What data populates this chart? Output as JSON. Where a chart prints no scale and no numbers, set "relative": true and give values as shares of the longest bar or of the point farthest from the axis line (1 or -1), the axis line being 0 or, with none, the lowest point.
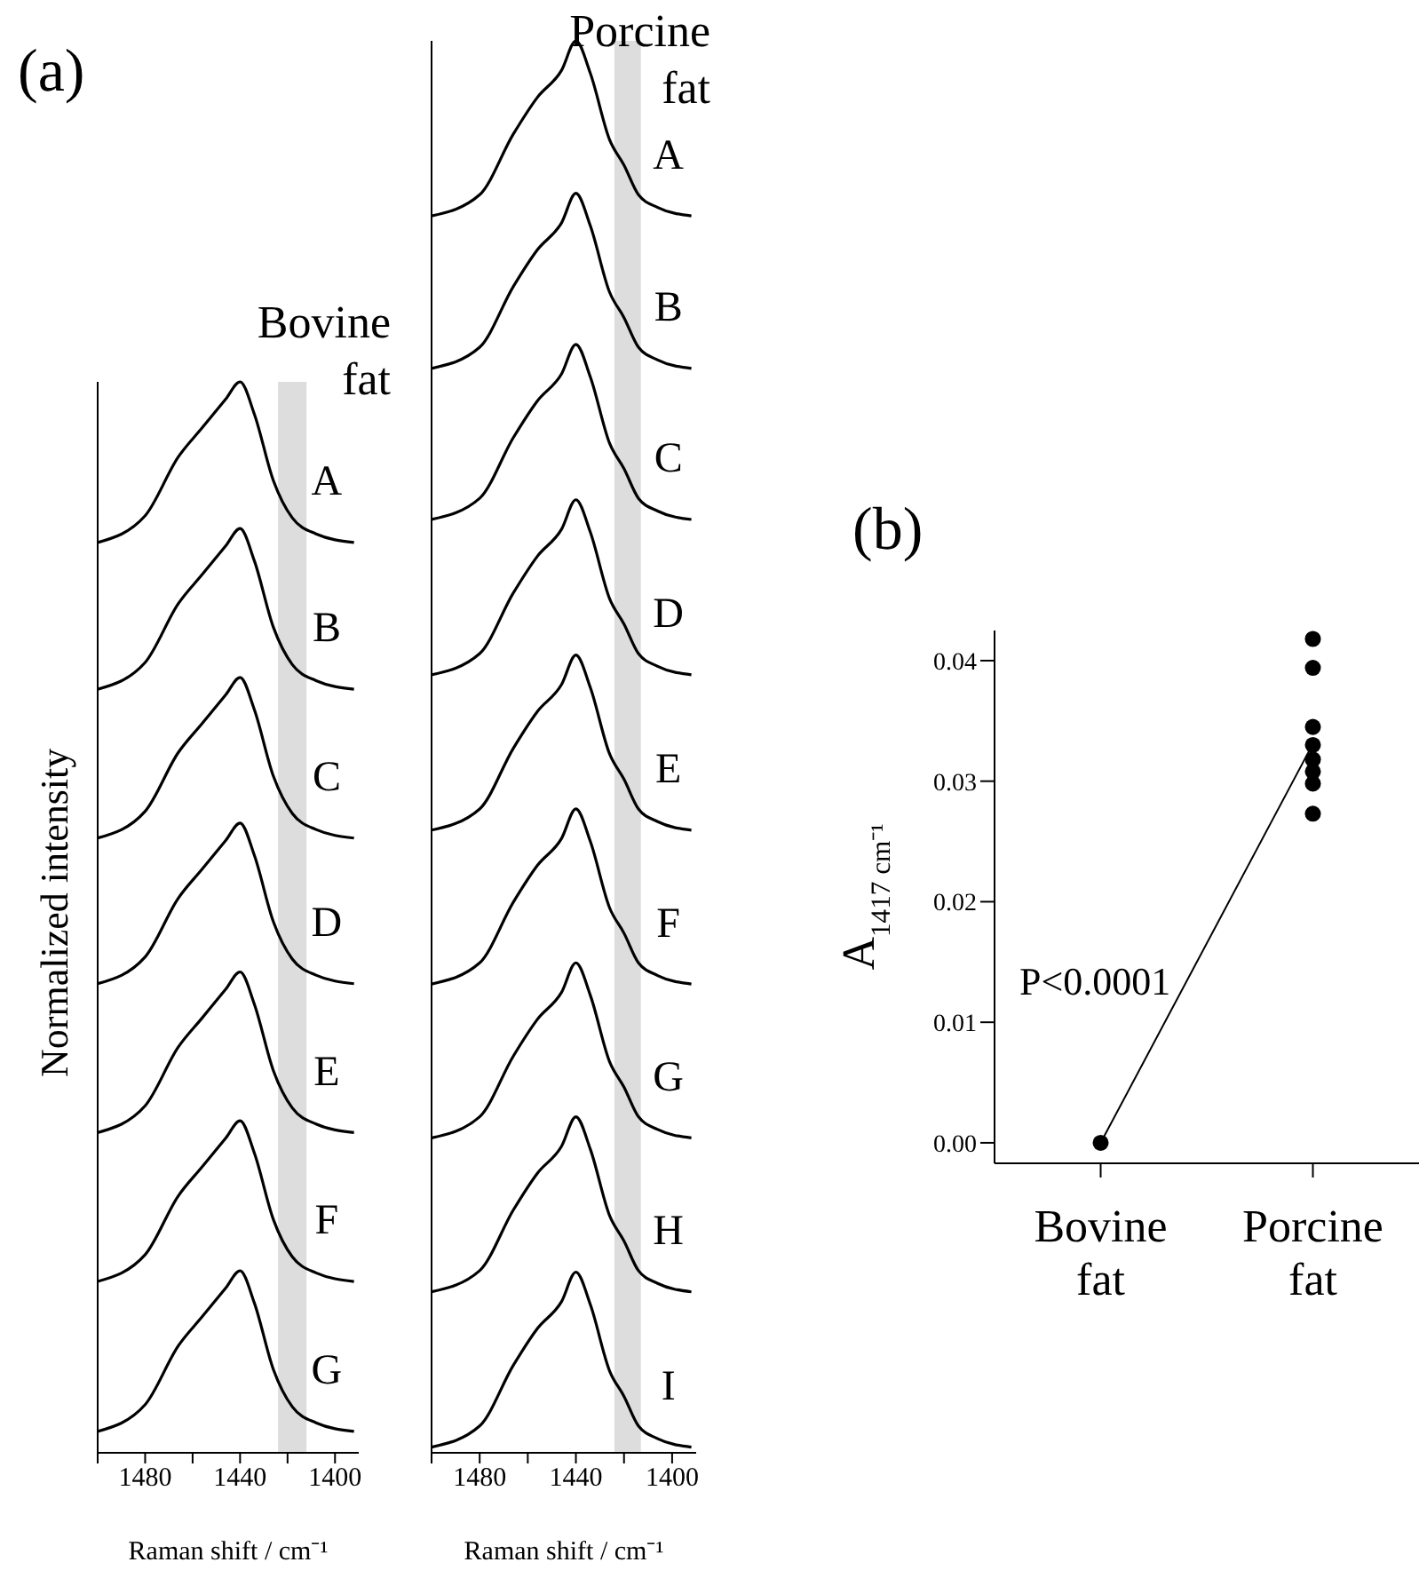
{
  "chart_data": [
    {
      "type": "line",
      "relative": true,
      "title": "Bovine fat",
      "ylabel": "Normalized intensity",
      "xlabel": "Raman shift / cm⁻¹",
      "annotations": [
        "(a)"
      ],
      "x": [
        1500,
        1480,
        1466,
        1456,
        1446,
        1440,
        1434,
        1426,
        1418,
        1408,
        1392
      ],
      "xlim": [
        1500,
        1390
      ],
      "xticks": [
        {
          "value": 1500,
          "label": null
        },
        1480,
        {
          "value": 1460,
          "label": null
        },
        1440,
        {
          "value": 1420,
          "label": null
        },
        1400
      ],
      "bands": [
        {
          "axis": "x",
          "from": 1424,
          "to": 1412,
          "color": "#dddddd"
        }
      ],
      "marker": "none",
      "line_style": "solid",
      "series": [
        {
          "name": "A",
          "color": "#000000",
          "values": [
            0.85,
            0.875,
            0.93,
            0.957,
            0.984,
            1.0,
            0.97,
            0.908,
            0.873,
            0.858,
            0.85
          ]
        },
        {
          "name": "B",
          "color": "#000000",
          "values": [
            0.713,
            0.738,
            0.793,
            0.82,
            0.847,
            0.863,
            0.833,
            0.771,
            0.736,
            0.721,
            0.713
          ]
        },
        {
          "name": "C",
          "color": "#000000",
          "values": [
            0.574,
            0.599,
            0.654,
            0.681,
            0.708,
            0.724,
            0.694,
            0.632,
            0.597,
            0.582,
            0.574
          ]
        },
        {
          "name": "D",
          "color": "#000000",
          "values": [
            0.438,
            0.463,
            0.518,
            0.545,
            0.572,
            0.588,
            0.558,
            0.496,
            0.461,
            0.446,
            0.438
          ]
        },
        {
          "name": "E",
          "color": "#000000",
          "values": [
            0.299,
            0.324,
            0.379,
            0.406,
            0.433,
            0.449,
            0.419,
            0.357,
            0.322,
            0.307,
            0.299
          ]
        },
        {
          "name": "F",
          "color": "#000000",
          "values": [
            0.16,
            0.185,
            0.24,
            0.267,
            0.294,
            0.31,
            0.28,
            0.218,
            0.183,
            0.168,
            0.16
          ]
        },
        {
          "name": "G",
          "color": "#000000",
          "values": [
            0.02,
            0.045,
            0.1,
            0.127,
            0.154,
            0.17,
            0.14,
            0.078,
            0.043,
            0.028,
            0.02
          ]
        }
      ]
    },
    {
      "type": "line",
      "relative": true,
      "title": "Porcine fat",
      "xlabel": "Raman shift / cm⁻¹",
      "x": [
        1500,
        1480,
        1466,
        1456,
        1446,
        1440,
        1434,
        1426,
        1420,
        1414,
        1406,
        1392
      ],
      "xlim": [
        1500,
        1390
      ],
      "xticks": [
        {
          "value": 1500,
          "label": null
        },
        1480,
        {
          "value": 1460,
          "label": null
        },
        1440,
        {
          "value": 1420,
          "label": null
        },
        1400
      ],
      "bands": [
        {
          "axis": "x",
          "from": 1424,
          "to": 1413,
          "color": "#dddddd"
        }
      ],
      "marker": "none",
      "line_style": "solid",
      "series": [
        {
          "name": "A",
          "color": "#000000",
          "values": [
            0.876,
            0.891,
            0.934,
            0.96,
            0.979,
            1.0,
            0.977,
            0.93,
            0.912,
            0.891,
            0.882,
            0.876
          ]
        },
        {
          "name": "B",
          "color": "#000000",
          "values": [
            0.768,
            0.783,
            0.826,
            0.852,
            0.871,
            0.892,
            0.869,
            0.822,
            0.804,
            0.783,
            0.774,
            0.768
          ]
        },
        {
          "name": "C",
          "color": "#000000",
          "values": [
            0.661,
            0.676,
            0.719,
            0.745,
            0.764,
            0.785,
            0.762,
            0.715,
            0.697,
            0.676,
            0.667,
            0.661
          ]
        },
        {
          "name": "D",
          "color": "#000000",
          "values": [
            0.551,
            0.566,
            0.609,
            0.635,
            0.654,
            0.675,
            0.652,
            0.605,
            0.587,
            0.566,
            0.557,
            0.551
          ]
        },
        {
          "name": "E",
          "color": "#000000",
          "values": [
            0.441,
            0.456,
            0.499,
            0.525,
            0.544,
            0.565,
            0.542,
            0.495,
            0.477,
            0.456,
            0.447,
            0.441
          ]
        },
        {
          "name": "F",
          "color": "#000000",
          "values": [
            0.332,
            0.347,
            0.39,
            0.416,
            0.435,
            0.456,
            0.433,
            0.386,
            0.368,
            0.347,
            0.338,
            0.332
          ]
        },
        {
          "name": "G",
          "color": "#000000",
          "values": [
            0.223,
            0.238,
            0.281,
            0.307,
            0.326,
            0.347,
            0.324,
            0.277,
            0.259,
            0.238,
            0.229,
            0.223
          ]
        },
        {
          "name": "H",
          "color": "#000000",
          "values": [
            0.114,
            0.129,
            0.172,
            0.198,
            0.217,
            0.238,
            0.215,
            0.168,
            0.15,
            0.129,
            0.12,
            0.114
          ]
        },
        {
          "name": "I",
          "color": "#000000",
          "values": [
            0.004,
            0.019,
            0.062,
            0.088,
            0.107,
            0.128,
            0.105,
            0.058,
            0.04,
            0.019,
            0.01,
            0.004
          ]
        }
      ]
    },
    {
      "type": "scatter",
      "ylabel": "A$_{1417 cm⁻¹}$",
      "annotations": [
        "(b)",
        "P<0.0001"
      ],
      "categories": [
        "Bovine fat",
        "Porcine fat"
      ],
      "ylim": [
        -0.0017,
        0.0425
      ],
      "yticks": [
        {
          "value": 0,
          "label": "0.00"
        },
        {
          "value": 0.01,
          "label": "0.01"
        },
        {
          "value": 0.02,
          "label": "0.02"
        },
        {
          "value": 0.03,
          "label": "0.03"
        },
        {
          "value": 0.04,
          "label": "0.04"
        }
      ],
      "series": [
        {
          "type": "line",
          "color": "#000000",
          "x": [
            "Bovine fat",
            "Porcine fat"
          ],
          "values": [
            0,
            0.0331
          ]
        },
        {
          "type": "scatter",
          "color": "#000000",
          "x": [
            "Bovine fat"
          ],
          "values": [
            0
          ]
        },
        {
          "type": "scatter",
          "color": "#000000",
          "x": [
            "Porcine fat",
            "Porcine fat",
            "Porcine fat",
            "Porcine fat",
            "Porcine fat",
            "Porcine fat",
            "Porcine fat",
            "Porcine fat"
          ],
          "values": [
            0.0418,
            0.0394,
            0.0345,
            0.033,
            0.0318,
            0.0308,
            0.0298,
            0.0273
          ]
        }
      ]
    }
  ]
}
